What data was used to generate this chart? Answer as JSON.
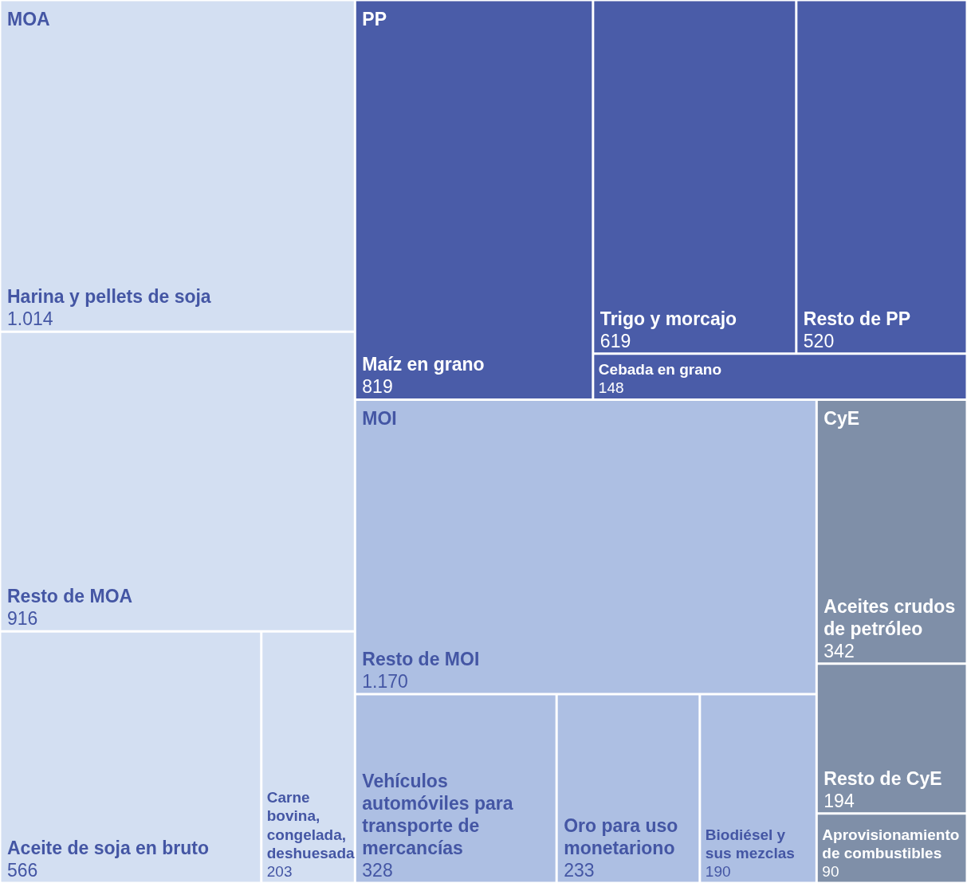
{
  "chart_data": {
    "type": "other",
    "categories": [
      "Harina y pellets de soja",
      "Resto de MOA",
      "Aceite de soja en bruto",
      "Carne bovina, congelada, deshuesada",
      "Maíz en grano",
      "Trigo y morcajo",
      "Resto de PP",
      "Cebada en grano",
      "Resto de MOI",
      "Vehículos automóviles para transporte de mercancías",
      "Oro para uso monetariono",
      "Biodiésel y sus mezclas",
      "Aceites crudos de petróleo",
      "Resto de CyE",
      "Aprovisionamiento de combustibles"
    ],
    "series": [
      {
        "name": "MOA",
        "color": "#d3dff2",
        "values": [
          1014,
          916,
          566,
          203,
          null,
          null,
          null,
          null,
          null,
          null,
          null,
          null,
          null,
          null,
          null
        ],
        "value_labels": [
          "1.014",
          "916",
          "566",
          "203",
          null,
          null,
          null,
          null,
          null,
          null,
          null,
          null,
          null,
          null,
          null
        ]
      },
      {
        "name": "PP",
        "color": "#4a5ca8",
        "values": [
          null,
          null,
          null,
          null,
          819,
          619,
          520,
          148,
          null,
          null,
          null,
          null,
          null,
          null,
          null
        ],
        "value_labels": [
          null,
          null,
          null,
          null,
          "819",
          "619",
          "520",
          "148",
          null,
          null,
          null,
          null,
          null,
          null,
          null
        ]
      },
      {
        "name": "MOI",
        "color": "#adbfe3",
        "values": [
          null,
          null,
          null,
          null,
          null,
          null,
          null,
          null,
          1170,
          328,
          233,
          190,
          null,
          null,
          null
        ],
        "value_labels": [
          null,
          null,
          null,
          null,
          null,
          null,
          null,
          null,
          "1.170",
          "328",
          "233",
          "190",
          null,
          null,
          null
        ]
      },
      {
        "name": "CyE",
        "color": "#7f8fa8",
        "values": [
          null,
          null,
          null,
          null,
          null,
          null,
          null,
          null,
          null,
          null,
          null,
          null,
          342,
          194,
          90
        ],
        "value_labels": [
          null,
          null,
          null,
          null,
          null,
          null,
          null,
          null,
          null,
          null,
          null,
          null,
          "342",
          "194",
          "90"
        ]
      }
    ]
  }
}
